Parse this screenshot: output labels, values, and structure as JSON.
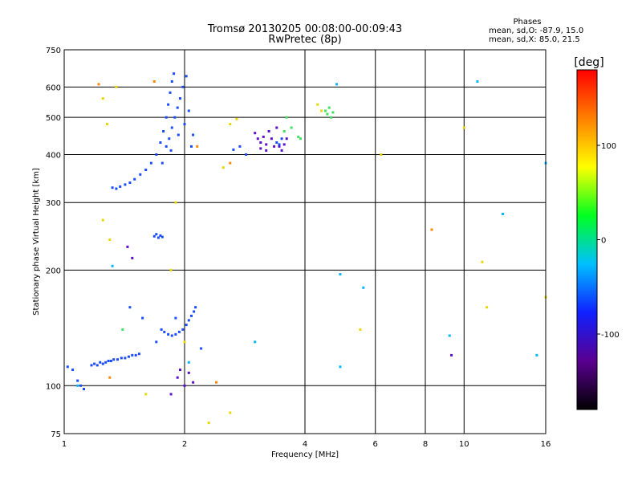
{
  "chart_data": {
    "type": "scatter",
    "title": "Tromsø 20130205 00:08:00-00:09:43",
    "subtitle": "RwPretec (8p)",
    "xlabel": "Frequency [MHz]",
    "ylabel": "Stationary phase Virtual Height [km]",
    "x_scale": "log",
    "y_scale": "log",
    "xlim": [
      1,
      16
    ],
    "ylim": [
      75,
      750
    ],
    "x_ticks": [
      "1",
      "2",
      "4",
      "6",
      "8",
      "10",
      "16"
    ],
    "y_ticks": [
      "75",
      "100",
      "200",
      "300",
      "400",
      "500",
      "600",
      "750"
    ],
    "grid": true,
    "stats": {
      "title": "Phases",
      "line1": "mean, sd,O: -87.9, 15.0",
      "line2": "mean, sd,X:  85.0, 21.5"
    },
    "colorbar": {
      "label": "[deg]",
      "range": [
        -180,
        180
      ],
      "ticks": [
        "100",
        "0",
        "-100"
      ],
      "colors": [
        "#000000",
        "#5a0090",
        "#1020ff",
        "#00c0ff",
        "#00ff20",
        "#ffff00",
        "#ff8000",
        "#ff0000"
      ]
    },
    "series": [
      {
        "color": "#1a4cff",
        "points": [
          [
            1.17,
            113
          ],
          [
            1.19,
            114
          ],
          [
            1.21,
            113
          ],
          [
            1.23,
            115
          ],
          [
            1.25,
            114
          ],
          [
            1.27,
            115
          ],
          [
            1.29,
            116
          ],
          [
            1.31,
            116
          ],
          [
            1.33,
            117
          ],
          [
            1.36,
            117
          ],
          [
            1.39,
            118
          ],
          [
            1.42,
            118
          ],
          [
            1.45,
            119
          ],
          [
            1.48,
            120
          ],
          [
            1.51,
            120
          ],
          [
            1.54,
            121
          ],
          [
            1.75,
            140
          ],
          [
            1.78,
            138
          ],
          [
            1.82,
            136
          ],
          [
            1.86,
            135
          ],
          [
            1.9,
            136
          ],
          [
            1.94,
            138
          ],
          [
            1.98,
            140
          ],
          [
            2.02,
            144
          ],
          [
            2.05,
            148
          ],
          [
            2.08,
            152
          ],
          [
            2.11,
            156
          ],
          [
            2.13,
            160
          ],
          [
            1.32,
            328
          ],
          [
            1.35,
            326
          ],
          [
            1.38,
            330
          ],
          [
            1.42,
            334
          ],
          [
            1.46,
            338
          ],
          [
            1.5,
            345
          ],
          [
            1.55,
            355
          ],
          [
            1.6,
            365
          ],
          [
            1.65,
            380
          ],
          [
            1.7,
            400
          ],
          [
            1.74,
            430
          ],
          [
            1.77,
            460
          ],
          [
            1.8,
            500
          ],
          [
            1.82,
            540
          ],
          [
            1.84,
            580
          ],
          [
            1.86,
            620
          ],
          [
            1.88,
            650
          ],
          [
            1.8,
            420
          ],
          [
            1.83,
            440
          ],
          [
            1.86,
            470
          ],
          [
            1.89,
            500
          ],
          [
            1.92,
            530
          ],
          [
            1.95,
            560
          ],
          [
            1.98,
            600
          ],
          [
            2.02,
            640
          ],
          [
            1.76,
            380
          ],
          [
            1.85,
            410
          ],
          [
            1.93,
            450
          ],
          [
            2.0,
            480
          ],
          [
            2.05,
            520
          ],
          [
            2.1,
            450
          ],
          [
            2.08,
            420
          ],
          [
            1.68,
            245
          ],
          [
            1.7,
            248
          ],
          [
            1.72,
            243
          ],
          [
            1.74,
            246
          ],
          [
            1.76,
            244
          ],
          [
            2.65,
            412
          ],
          [
            2.75,
            420
          ],
          [
            2.85,
            400
          ],
          [
            3.4,
            430
          ],
          [
            3.45,
            425
          ],
          [
            3.5,
            440
          ],
          [
            1.02,
            112
          ],
          [
            1.05,
            110
          ],
          [
            1.08,
            103
          ],
          [
            1.1,
            100
          ],
          [
            1.12,
            98
          ],
          [
            1.46,
            160
          ],
          [
            1.57,
            150
          ],
          [
            1.7,
            130
          ],
          [
            1.9,
            150
          ],
          [
            2.2,
            125
          ]
        ]
      },
      {
        "color": "#5a10c8",
        "points": [
          [
            3.05,
            440
          ],
          [
            3.1,
            430
          ],
          [
            3.15,
            445
          ],
          [
            3.2,
            425
          ],
          [
            3.25,
            460
          ],
          [
            3.3,
            440
          ],
          [
            3.35,
            420
          ],
          [
            3.1,
            415
          ],
          [
            3.2,
            410
          ],
          [
            3.45,
            420
          ],
          [
            3.5,
            410
          ],
          [
            3.55,
            425
          ],
          [
            3.0,
            455
          ],
          [
            3.4,
            470
          ],
          [
            3.6,
            440
          ],
          [
            1.95,
            110
          ],
          [
            2.05,
            108
          ],
          [
            2.0,
            100
          ],
          [
            1.85,
            95
          ],
          [
            2.1,
            102
          ],
          [
            1.92,
            105
          ],
          [
            9.3,
            120
          ],
          [
            1.48,
            215
          ],
          [
            1.44,
            230
          ]
        ]
      },
      {
        "color": "#00b8ff",
        "points": [
          [
            1.08,
            100
          ],
          [
            1.32,
            205
          ],
          [
            4.8,
            610
          ],
          [
            10.8,
            620
          ],
          [
            12.5,
            280
          ],
          [
            4.9,
            195
          ],
          [
            5.6,
            180
          ],
          [
            9.2,
            135
          ],
          [
            4.9,
            112
          ],
          [
            15.2,
            120
          ],
          [
            16.0,
            380
          ],
          [
            2.05,
            115
          ],
          [
            3.0,
            130
          ]
        ]
      },
      {
        "color": "#40e060",
        "points": [
          [
            3.6,
            500
          ],
          [
            3.7,
            470
          ],
          [
            3.85,
            445
          ],
          [
            3.9,
            440
          ],
          [
            4.5,
            520
          ],
          [
            4.55,
            510
          ],
          [
            4.6,
            530
          ],
          [
            4.65,
            500
          ],
          [
            4.7,
            515
          ],
          [
            3.55,
            460
          ],
          [
            1.4,
            140
          ]
        ]
      },
      {
        "color": "#e8d800",
        "points": [
          [
            1.25,
            560
          ],
          [
            1.28,
            480
          ],
          [
            1.35,
            600
          ],
          [
            2.6,
            480
          ],
          [
            2.7,
            495
          ],
          [
            2.5,
            370
          ],
          [
            4.3,
            540
          ],
          [
            4.4,
            520
          ],
          [
            10.0,
            470
          ],
          [
            6.2,
            400
          ],
          [
            11.1,
            210
          ],
          [
            11.4,
            160
          ],
          [
            16.0,
            170
          ],
          [
            1.9,
            300
          ],
          [
            1.85,
            200
          ],
          [
            2.3,
            80
          ],
          [
            2.6,
            85
          ],
          [
            1.3,
            240
          ],
          [
            1.25,
            270
          ],
          [
            1.6,
            95
          ],
          [
            2.0,
            130
          ],
          [
            5.5,
            140
          ]
        ]
      },
      {
        "color": "#ff8a00",
        "points": [
          [
            1.68,
            620
          ],
          [
            2.15,
            420
          ],
          [
            2.6,
            380
          ],
          [
            8.3,
            255
          ],
          [
            1.3,
            105
          ],
          [
            2.4,
            102
          ],
          [
            1.22,
            610
          ]
        ]
      }
    ]
  }
}
